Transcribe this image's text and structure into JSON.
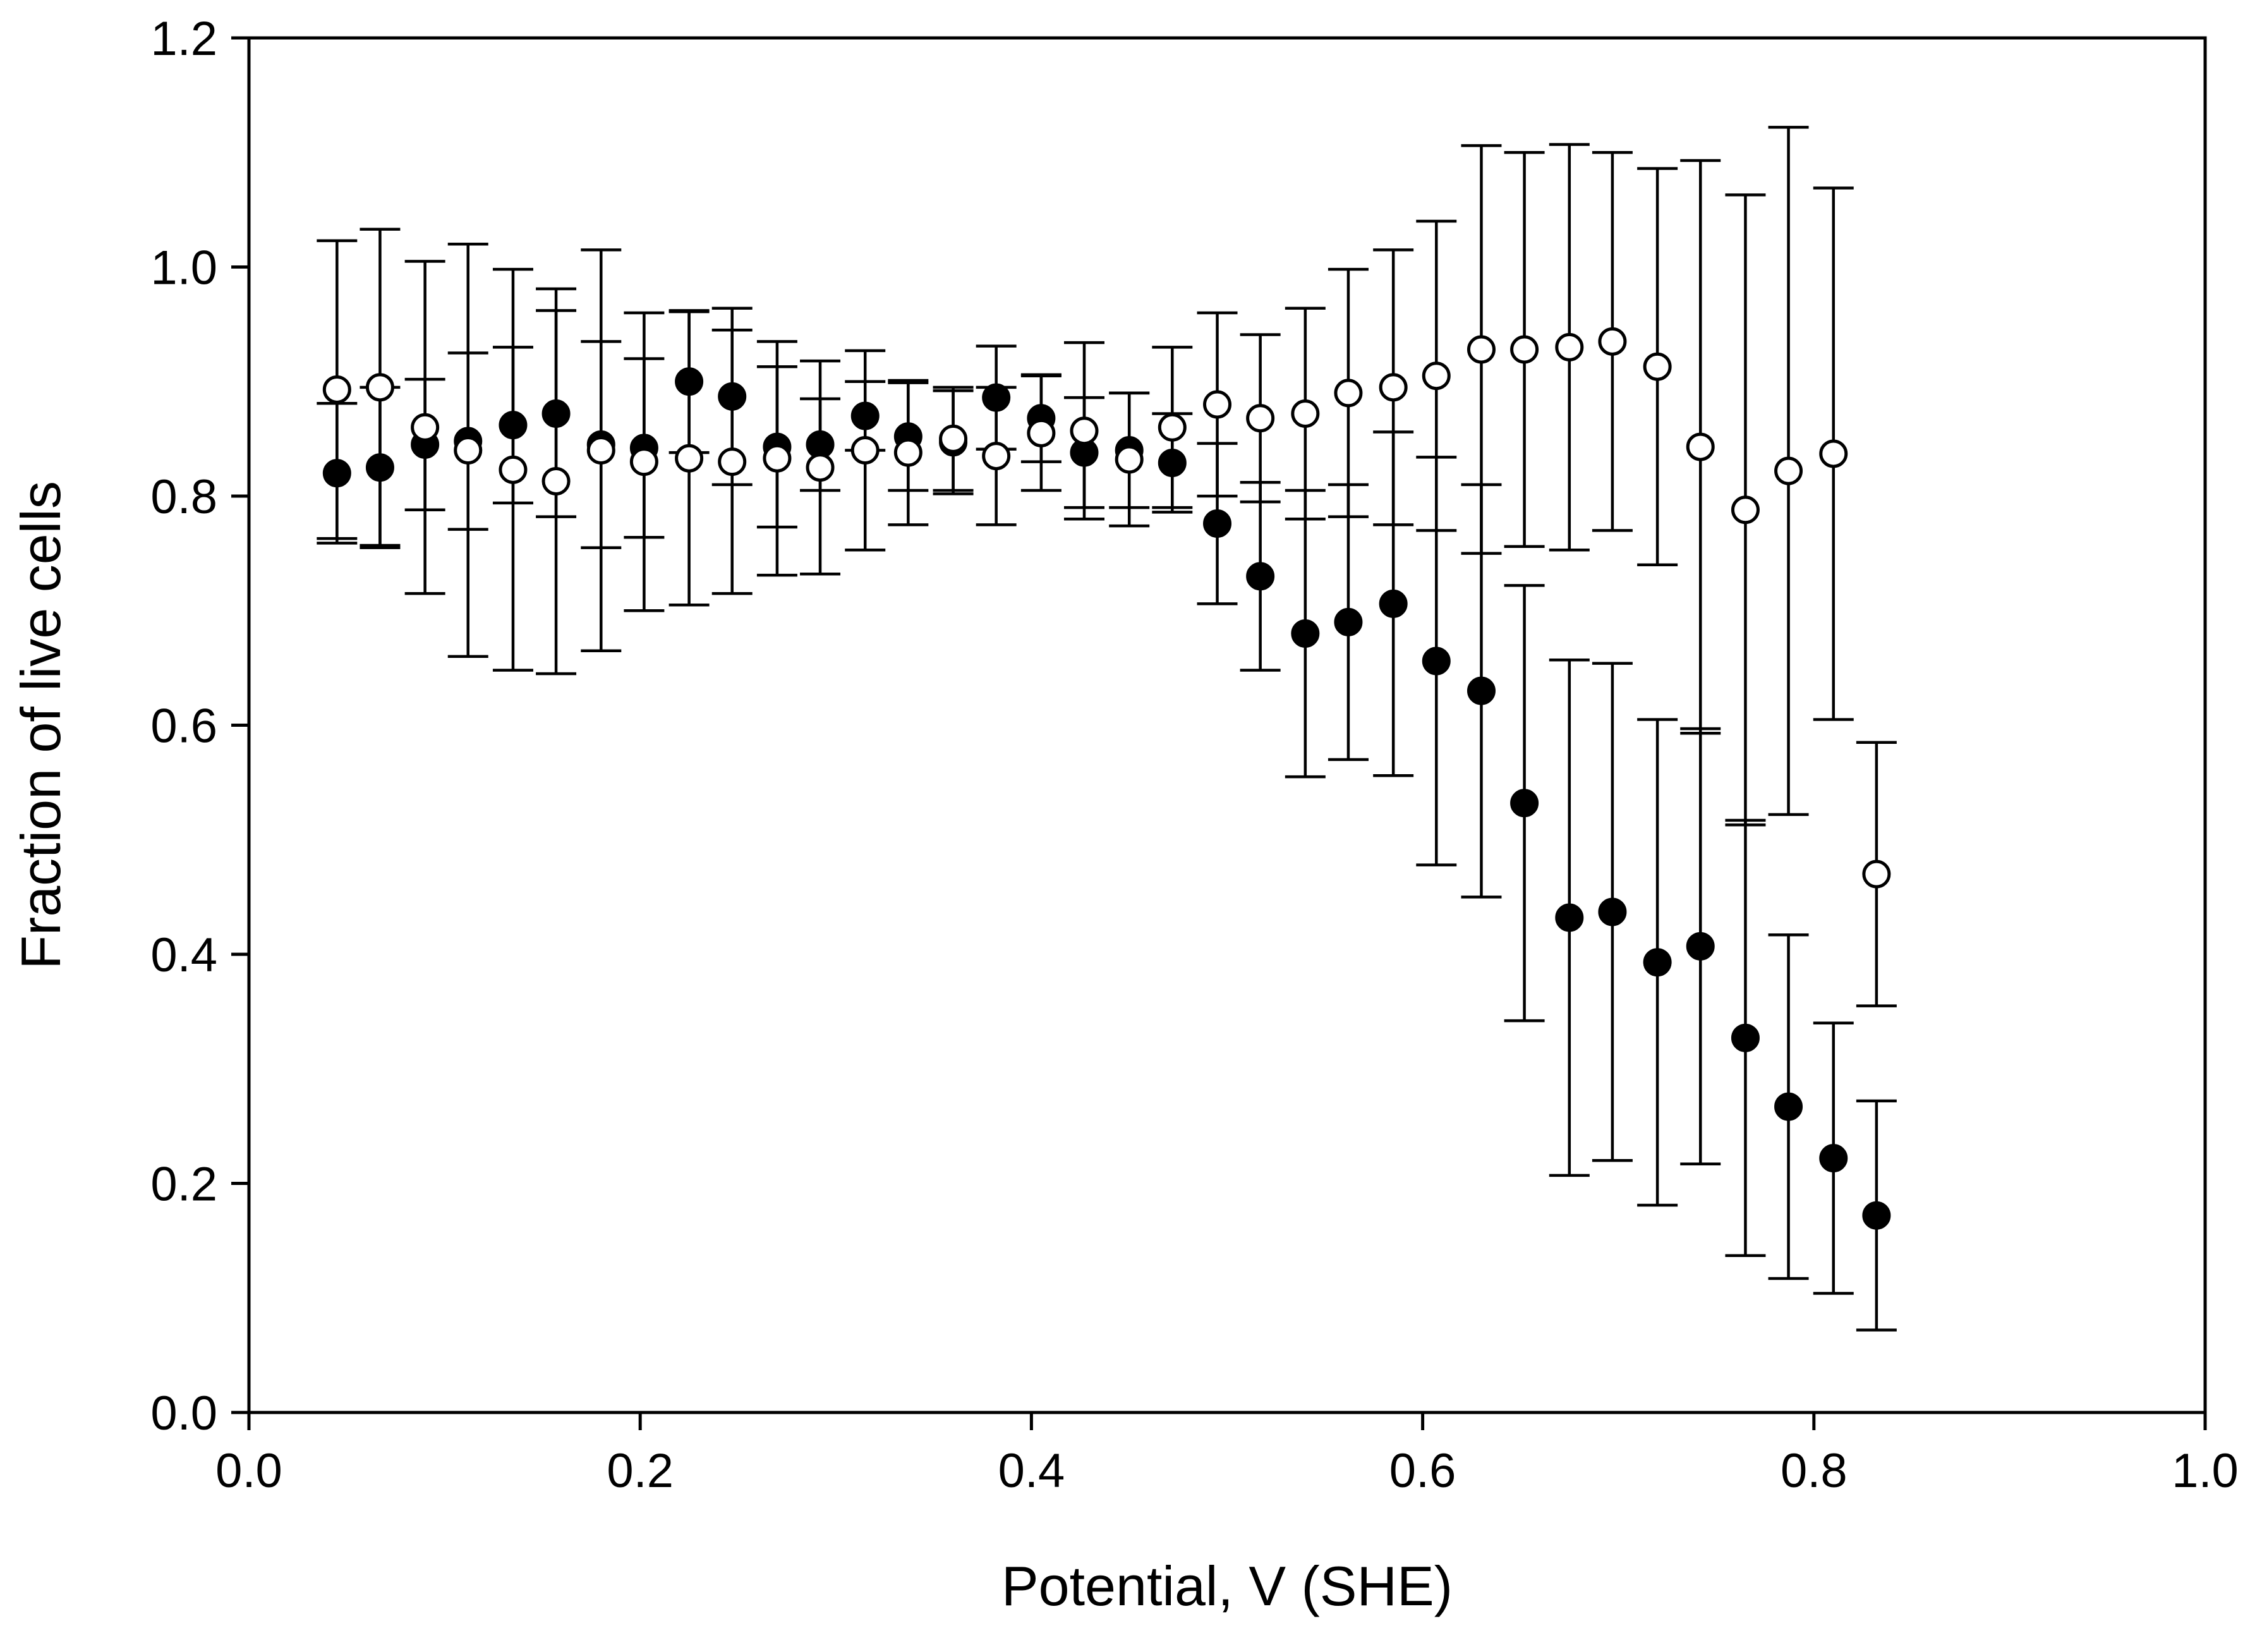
{
  "chart_data": {
    "type": "scatter",
    "title": "",
    "xlabel": "Potential, V (SHE)",
    "ylabel": "Fraction of live cells",
    "xlim": [
      0.0,
      1.0
    ],
    "ylim": [
      0.0,
      1.2
    ],
    "xticks": [
      "0.0",
      "0.2",
      "0.4",
      "0.6",
      "0.8",
      "1.0"
    ],
    "yticks": [
      "0.0",
      "0.2",
      "0.4",
      "0.6",
      "0.8",
      "1.0",
      "1.2"
    ],
    "grid": false,
    "legend": "none",
    "series": [
      {
        "name": "filled circles",
        "marker": "filled",
        "x": [
          0.045,
          0.067,
          0.09,
          0.112,
          0.135,
          0.157,
          0.18,
          0.202,
          0.225,
          0.247,
          0.27,
          0.292,
          0.315,
          0.337,
          0.36,
          0.382,
          0.405,
          0.427,
          0.45,
          0.472,
          0.495,
          0.517,
          0.54,
          0.562,
          0.585,
          0.607,
          0.63,
          0.652,
          0.675,
          0.697,
          0.72,
          0.742,
          0.765,
          0.787,
          0.81,
          0.832
        ],
        "y": [
          0.82,
          0.825,
          0.845,
          0.848,
          0.862,
          0.872,
          0.845,
          0.842,
          0.9,
          0.887,
          0.843,
          0.845,
          0.87,
          0.852,
          0.847,
          0.886,
          0.868,
          0.838,
          0.84,
          0.829,
          0.776,
          0.73,
          0.68,
          0.69,
          0.706,
          0.656,
          0.63,
          0.532,
          0.432,
          0.437,
          0.393,
          0.407,
          0.327,
          0.267,
          0.222,
          0.172
        ],
        "err": [
          0.061,
          0.07,
          0.057,
          0.077,
          0.068,
          0.09,
          0.09,
          0.078,
          0.062,
          0.077,
          0.07,
          0.04,
          0.03,
          0.047,
          0.045,
          0.045,
          0.038,
          0.048,
          0.05,
          0.043,
          0.07,
          0.082,
          0.125,
          0.12,
          0.15,
          0.178,
          0.18,
          0.19,
          0.225,
          0.217,
          0.212,
          0.19,
          0.19,
          0.15,
          0.118,
          0.1
        ]
      },
      {
        "name": "open circles",
        "marker": "open",
        "x": [
          0.045,
          0.067,
          0.09,
          0.112,
          0.135,
          0.157,
          0.18,
          0.202,
          0.225,
          0.247,
          0.27,
          0.292,
          0.315,
          0.337,
          0.36,
          0.382,
          0.405,
          0.427,
          0.45,
          0.472,
          0.495,
          0.517,
          0.54,
          0.562,
          0.585,
          0.607,
          0.63,
          0.652,
          0.675,
          0.697,
          0.72,
          0.742,
          0.765,
          0.787,
          0.81,
          0.832
        ],
        "y": [
          0.893,
          0.895,
          0.86,
          0.84,
          0.823,
          0.813,
          0.84,
          0.83,
          0.833,
          0.83,
          0.833,
          0.825,
          0.84,
          0.838,
          0.85,
          0.835,
          0.855,
          0.857,
          0.832,
          0.86,
          0.88,
          0.868,
          0.872,
          0.89,
          0.895,
          0.905,
          0.928,
          0.928,
          0.93,
          0.935,
          0.913,
          0.843,
          0.788,
          0.822,
          0.837,
          0.47
        ],
        "err": [
          0.13,
          0.138,
          0.145,
          0.18,
          0.175,
          0.168,
          0.175,
          0.13,
          0.128,
          0.115,
          0.102,
          0.093,
          0.087,
          0.063,
          0.045,
          0.06,
          0.05,
          0.077,
          0.058,
          0.07,
          0.08,
          0.073,
          0.092,
          0.108,
          0.12,
          0.135,
          0.178,
          0.172,
          0.177,
          0.165,
          0.173,
          0.25,
          0.275,
          0.3,
          0.232,
          0.115
        ]
      }
    ]
  }
}
